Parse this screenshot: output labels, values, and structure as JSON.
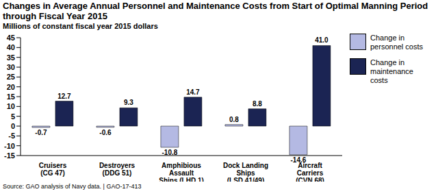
{
  "chart_data": {
    "type": "bar",
    "title": "Changes in Average Annual Personnel and Maintenance Costs from Start of Optimal Manning Period through Fiscal Year 2015",
    "y_label": "Millions of constant fiscal year 2015 dollars",
    "source": "Source: GAO analysis of Navy data. | GAO-17-413",
    "categories": [
      "Cruisers\n(CG 47)",
      "Destroyers\n(DDG 51)",
      "Amphibious\nAssault\nShips (LHD 1)",
      "Dock Landing\nShips\n(LSD 41/49)",
      "Aircraft\nCarriers\n(CVN 68)"
    ],
    "series": [
      {
        "name": "Change in personnel costs",
        "color": "#b4b9e3",
        "values": [
          -0.7,
          -0.6,
          -10.8,
          0.8,
          -14.6
        ],
        "value_labels": [
          "-0.7",
          "-0.6",
          "-10.8",
          "0.8",
          "-14.6"
        ]
      },
      {
        "name": "Change in maintenance costs",
        "color": "#1b2453",
        "values": [
          12.7,
          9.3,
          14.7,
          8.8,
          41.0
        ],
        "value_labels": [
          "12.7",
          "9.3",
          "14.7",
          "8.8",
          "41.0"
        ]
      }
    ],
    "ylim": [
      -15,
      45
    ],
    "yticks": [
      -15,
      -10,
      -5,
      0,
      5,
      10,
      15,
      20,
      25,
      30,
      35,
      40,
      45
    ],
    "grid": false,
    "legend": "right",
    "data_labels": true
  }
}
